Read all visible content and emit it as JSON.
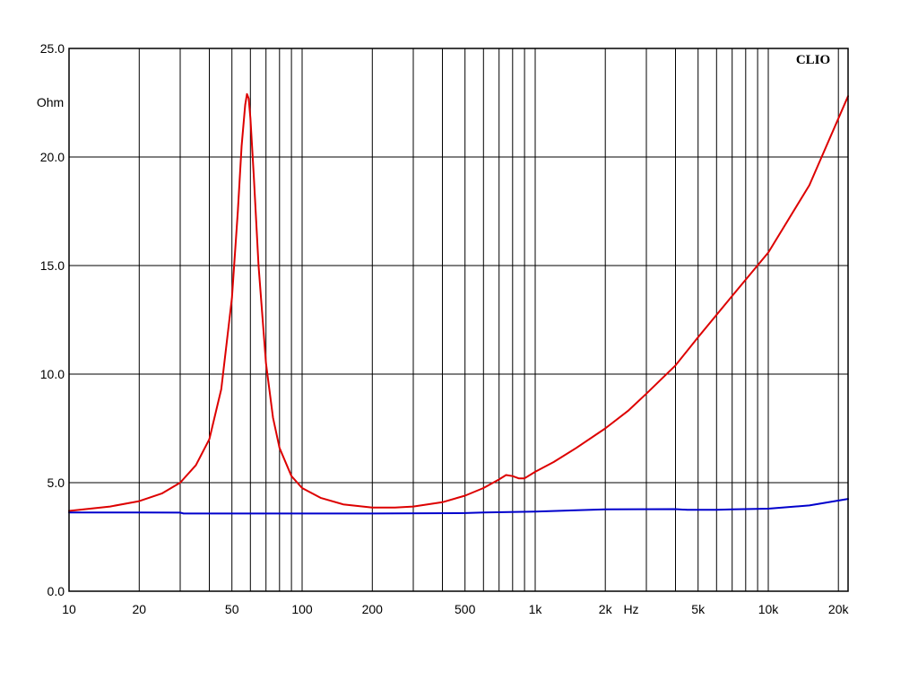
{
  "chart_data": {
    "type": "line",
    "brand_label": "CLIO",
    "ylabel": "Ohm",
    "xlabel": "Hz",
    "x_scale": "log",
    "xlim": [
      10,
      22000
    ],
    "ylim": [
      0,
      25
    ],
    "grid": true,
    "y_ticks": [
      "0.0",
      "5.0",
      "10.0",
      "15.0",
      "20.0",
      "25.0"
    ],
    "y_tick_values": [
      0,
      5,
      10,
      15,
      20,
      25
    ],
    "x_ticks": [
      {
        "value": 10,
        "label": "10"
      },
      {
        "value": 20,
        "label": "20"
      },
      {
        "value": 50,
        "label": "50"
      },
      {
        "value": 100,
        "label": "100"
      },
      {
        "value": 200,
        "label": "200"
      },
      {
        "value": 500,
        "label": "500"
      },
      {
        "value": 1000,
        "label": "1k"
      },
      {
        "value": 2000,
        "label": "2k"
      },
      {
        "value": 5000,
        "label": "5k"
      },
      {
        "value": 10000,
        "label": "10k"
      },
      {
        "value": 20000,
        "label": "20k"
      }
    ],
    "x_gridlines": [
      10,
      20,
      30,
      40,
      50,
      60,
      70,
      80,
      90,
      100,
      200,
      300,
      400,
      500,
      600,
      700,
      800,
      900,
      1000,
      2000,
      3000,
      4000,
      5000,
      6000,
      7000,
      8000,
      9000,
      10000,
      20000
    ],
    "series": [
      {
        "color": "#dd0000",
        "x": [
          10,
          15,
          20,
          25,
          30,
          35,
          40,
          45,
          50,
          53,
          55,
          57,
          58,
          59,
          60,
          62,
          65,
          70,
          75,
          80,
          90,
          100,
          120,
          150,
          200,
          250,
          300,
          400,
          500,
          600,
          700,
          750,
          800,
          850,
          900,
          1000,
          1200,
          1500,
          2000,
          2500,
          3000,
          4000,
          5000,
          7000,
          10000,
          15000,
          22000
        ],
        "y": [
          3.7,
          3.9,
          4.15,
          4.5,
          5.0,
          5.8,
          7.0,
          9.3,
          13.5,
          17.5,
          20.5,
          22.4,
          22.9,
          22.7,
          21.8,
          19.2,
          15.0,
          10.5,
          8.0,
          6.6,
          5.3,
          4.75,
          4.3,
          4.0,
          3.85,
          3.85,
          3.9,
          4.1,
          4.4,
          4.75,
          5.15,
          5.35,
          5.3,
          5.2,
          5.2,
          5.5,
          5.95,
          6.6,
          7.5,
          8.3,
          9.1,
          10.4,
          11.7,
          13.6,
          15.6,
          18.7,
          22.8
        ]
      },
      {
        "color": "#0000cc",
        "x": [
          10,
          20,
          30,
          31,
          50,
          100,
          200,
          500,
          600,
          1000,
          2000,
          4000,
          4500,
          6000,
          7000,
          10000,
          15000,
          22000
        ],
        "y": [
          3.63,
          3.63,
          3.62,
          3.58,
          3.58,
          3.58,
          3.58,
          3.6,
          3.63,
          3.67,
          3.77,
          3.78,
          3.75,
          3.75,
          3.77,
          3.8,
          3.95,
          4.25
        ]
      }
    ]
  }
}
